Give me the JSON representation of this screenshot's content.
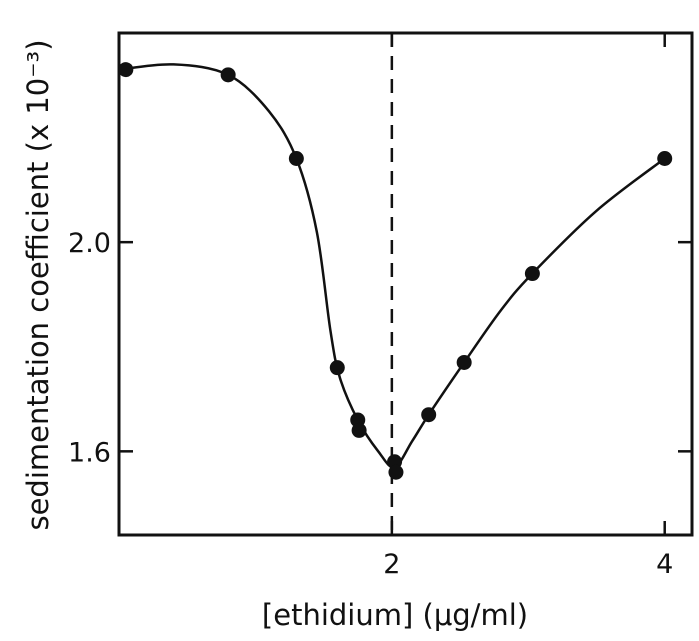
{
  "chart_data": {
    "type": "line",
    "title": "",
    "xlabel": "[ethidium] (μg/ml)",
    "ylabel": "sedimentation coefficient (x 10⁻³)",
    "xlim": [
      0,
      4.2
    ],
    "ylim": [
      1.44,
      2.4
    ],
    "x_ticks": [
      2,
      4
    ],
    "x_tick_labels": [
      "2",
      "4"
    ],
    "y_ticks": [
      1.6,
      2.0
    ],
    "y_tick_labels": [
      "1.6",
      "2.0"
    ],
    "grid": false,
    "legend": "none",
    "reference_line": {
      "x": 2.0,
      "style": "dashed"
    },
    "series": [
      {
        "values": [
          {
            "x": 0.05,
            "y": 2.33
          },
          {
            "x": 0.8,
            "y": 2.32
          },
          {
            "x": 1.3,
            "y": 2.16
          },
          {
            "x": 1.6,
            "y": 1.76
          },
          {
            "x": 1.75,
            "y": 1.66
          },
          {
            "x": 1.76,
            "y": 1.64
          },
          {
            "x": 2.02,
            "y": 1.58
          },
          {
            "x": 2.03,
            "y": 1.56
          },
          {
            "x": 2.27,
            "y": 1.67
          },
          {
            "x": 2.53,
            "y": 1.77
          },
          {
            "x": 3.03,
            "y": 1.94
          },
          {
            "x": 4.0,
            "y": 2.16
          }
        ],
        "curve": [
          {
            "x": 0.0,
            "y": 2.33
          },
          {
            "x": 0.4,
            "y": 2.34
          },
          {
            "x": 0.8,
            "y": 2.32
          },
          {
            "x": 1.1,
            "y": 2.25
          },
          {
            "x": 1.3,
            "y": 2.16
          },
          {
            "x": 1.45,
            "y": 2.02
          },
          {
            "x": 1.55,
            "y": 1.83
          },
          {
            "x": 1.62,
            "y": 1.74
          },
          {
            "x": 1.75,
            "y": 1.66
          },
          {
            "x": 1.9,
            "y": 1.6
          },
          {
            "x": 2.02,
            "y": 1.57
          },
          {
            "x": 2.15,
            "y": 1.62
          },
          {
            "x": 2.27,
            "y": 1.67
          },
          {
            "x": 2.53,
            "y": 1.77
          },
          {
            "x": 2.8,
            "y": 1.87
          },
          {
            "x": 3.03,
            "y": 1.94
          },
          {
            "x": 3.5,
            "y": 2.06
          },
          {
            "x": 4.0,
            "y": 2.16
          }
        ]
      }
    ],
    "colors": {
      "ink": "#111111",
      "background": "#ffffff"
    }
  }
}
